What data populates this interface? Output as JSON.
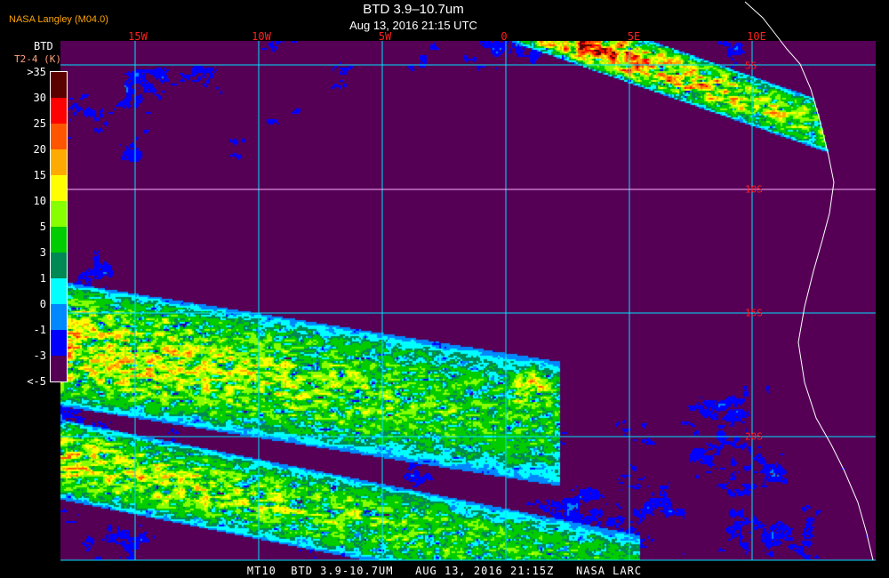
{
  "header": {
    "credit": "NASA Langley (M04.0)",
    "title": "BTD 3.9–10.7um",
    "subtitle": "Aug 13, 2016 21:15 UTC"
  },
  "legend": {
    "title": "BTD",
    "unit": "T2-4 (K)",
    "labels": [
      ">35",
      "30",
      "25",
      "20",
      "15",
      "10",
      "5",
      "3",
      "1",
      "0",
      "-1",
      "-3",
      "<-5"
    ],
    "colors": [
      "#5a0000",
      "#ff0000",
      "#ff5500",
      "#ffaa00",
      "#ffff00",
      "#88ff00",
      "#00cc00",
      "#008855",
      "#00ffff",
      "#0088ff",
      "#0000ff",
      "#550055"
    ]
  },
  "map": {
    "longitude_labels": [
      "15W",
      "10W",
      "5W",
      "0",
      "5E",
      "10E"
    ],
    "latitude_labels": [
      "5S",
      "10S",
      "15S",
      "20S"
    ],
    "grid_color": "#00e0ff",
    "coastline_color": "#ffffff"
  },
  "footer": {
    "caption": "MT10  BTD 3.9-10.7UM   AUG 13, 2016 21:15Z   NASA LARC"
  }
}
